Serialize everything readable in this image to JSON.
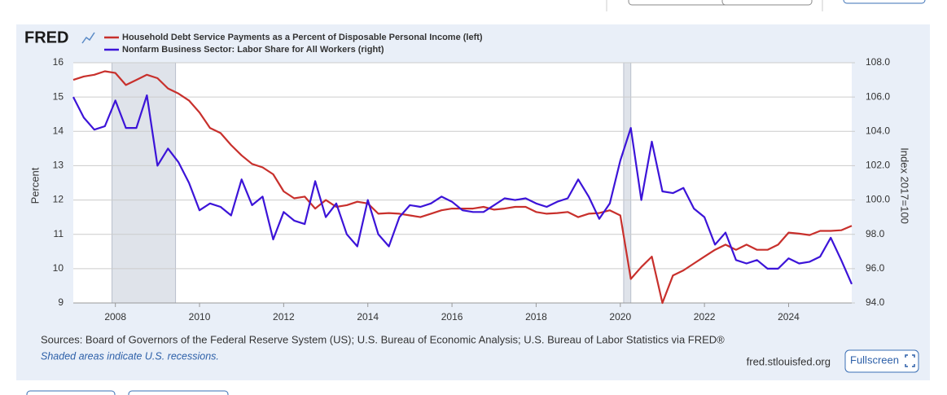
{
  "chart_data": {
    "type": "line",
    "logo": "FRED",
    "ylabel": "Percent",
    "y2label": "Index 2017=100",
    "xlim": [
      2007,
      2025.5
    ],
    "xticks": [
      2008,
      2010,
      2012,
      2014,
      2016,
      2018,
      2020,
      2022,
      2024
    ],
    "ylim": [
      9,
      16
    ],
    "yticks": [
      9,
      10,
      11,
      12,
      13,
      14,
      15,
      16
    ],
    "y2lim": [
      94,
      108
    ],
    "y2ticks": [
      {
        "value": 94,
        "label": "94.0"
      },
      {
        "value": 96,
        "label": "96.0"
      },
      {
        "value": 98,
        "label": "98.0"
      },
      {
        "value": 100,
        "label": "100.0"
      },
      {
        "value": 102,
        "label": "102.0"
      },
      {
        "value": 104,
        "label": "104.0"
      },
      {
        "value": 106,
        "label": "106.0"
      },
      {
        "value": 108,
        "label": "108.0"
      }
    ],
    "grid": true,
    "recessions": [
      [
        2007.92,
        2009.43
      ],
      [
        2020.08,
        2020.25
      ]
    ],
    "x": [
      2007,
      2007.25,
      2007.5,
      2007.75,
      2008,
      2008.25,
      2008.5,
      2008.75,
      2009,
      2009.25,
      2009.5,
      2009.75,
      2010,
      2010.25,
      2010.5,
      2010.75,
      2011,
      2011.25,
      2011.5,
      2011.75,
      2012,
      2012.25,
      2012.5,
      2012.75,
      2013,
      2013.25,
      2013.5,
      2013.75,
      2014,
      2014.25,
      2014.5,
      2014.75,
      2015,
      2015.25,
      2015.5,
      2015.75,
      2016,
      2016.25,
      2016.5,
      2016.75,
      2017,
      2017.25,
      2017.5,
      2017.75,
      2018,
      2018.25,
      2018.5,
      2018.75,
      2019,
      2019.25,
      2019.5,
      2019.75,
      2020,
      2020.25,
      2020.5,
      2020.75,
      2021,
      2021.25,
      2021.5,
      2021.75,
      2022,
      2022.25,
      2022.5,
      2022.75,
      2023,
      2023.25,
      2023.5,
      2023.75,
      2024,
      2024.25,
      2024.5,
      2024.75,
      2025,
      2025.25,
      2025.5
    ],
    "series": [
      {
        "name": "Household Debt Service Payments as a Percent of Disposable Personal Income (left)",
        "color": "#c8302c",
        "values": [
          15.5,
          15.6,
          15.65,
          15.75,
          15.7,
          15.35,
          15.5,
          15.65,
          15.55,
          15.25,
          15.1,
          14.9,
          14.55,
          14.1,
          13.95,
          13.6,
          13.3,
          13.05,
          12.95,
          12.75,
          12.25,
          12.05,
          12.1,
          11.75,
          12.0,
          11.8,
          11.85,
          11.95,
          11.9,
          11.6,
          11.62,
          11.6,
          11.55,
          11.5,
          11.6,
          11.7,
          11.75,
          11.75,
          11.75,
          11.8,
          11.72,
          11.75,
          11.8,
          11.8,
          11.65,
          11.6,
          11.62,
          11.65,
          11.5,
          11.6,
          11.62,
          11.7,
          11.55,
          9.7,
          10.05,
          10.35,
          9.0,
          9.8,
          9.95,
          10.15,
          10.35,
          10.55,
          10.7,
          10.55,
          10.7,
          10.55,
          10.55,
          10.7,
          11.05,
          11.02,
          10.98,
          11.1,
          11.1,
          11.12,
          11.25
        ]
      },
      {
        "name": "Nonfarm Business Sector: Labor Share for All Workers (right)",
        "color": "#3c14d8",
        "axis": "y2",
        "values": [
          106.0,
          104.8,
          104.1,
          104.3,
          105.8,
          104.2,
          104.2,
          106.1,
          102.0,
          103.0,
          102.2,
          101.0,
          99.4,
          99.8,
          99.6,
          99.1,
          101.2,
          99.7,
          100.2,
          97.7,
          99.3,
          98.8,
          98.6,
          101.1,
          99.0,
          99.8,
          98.0,
          97.3,
          100.0,
          98.0,
          97.3,
          99.0,
          99.7,
          99.6,
          99.8,
          100.2,
          99.9,
          99.4,
          99.3,
          99.3,
          99.7,
          100.1,
          100.0,
          100.1,
          99.8,
          99.6,
          99.9,
          100.1,
          101.2,
          100.2,
          98.9,
          99.8,
          102.3,
          104.2,
          100.0,
          103.4,
          100.5,
          100.4,
          100.7,
          99.5,
          99.0,
          97.4,
          98.1,
          96.5,
          96.3,
          96.5,
          96.0,
          96.0,
          96.6,
          96.3,
          96.4,
          96.7,
          97.8,
          96.5,
          95.1
        ]
      }
    ]
  },
  "footer": {
    "sources": "Sources: Board of Governors of the Federal Reserve System (US); U.S. Bureau of Economic Analysis; U.S. Bureau of Labor Statistics via FRED®",
    "note": "Shaded areas indicate U.S. recessions.",
    "url": "fred.stlouisfed.org",
    "button": "Fullscreen"
  }
}
